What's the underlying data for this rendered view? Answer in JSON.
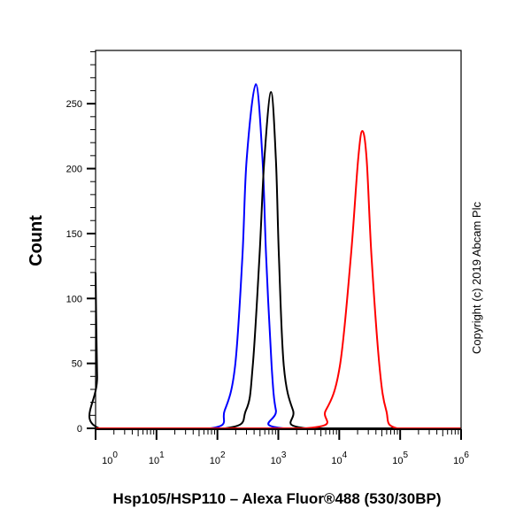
{
  "chart_data": {
    "type": "line",
    "title": "",
    "xlabel": "Hsp105/HSP110 – Alexa Fluor®488 (530/30BP)",
    "ylabel": "Count",
    "x_scale": "log",
    "xlim": [
      1,
      1000000
    ],
    "ylim": [
      0,
      291
    ],
    "grid": false,
    "legend": "none",
    "x_ticks": [
      {
        "base": "10",
        "exp": "0"
      },
      {
        "base": "10",
        "exp": "1"
      },
      {
        "base": "10",
        "exp": "2"
      },
      {
        "base": "10",
        "exp": "3"
      },
      {
        "base": "10",
        "exp": "4"
      },
      {
        "base": "10",
        "exp": "5"
      },
      {
        "base": "10",
        "exp": "6"
      }
    ],
    "y_ticks": [
      "0",
      "50",
      "100",
      "150",
      "200",
      "250"
    ],
    "annotation": "Copyright (c) 2019 Abcam Plc",
    "series": [
      {
        "color": "#0000ff",
        "points": [
          [
            1,
            0
          ],
          [
            76,
            0
          ],
          [
            132,
            14
          ],
          [
            195,
            48
          ],
          [
            257,
            132
          ],
          [
            302,
            207
          ],
          [
            427,
            265
          ],
          [
            550,
            207
          ],
          [
            631,
            132
          ],
          [
            776,
            48
          ],
          [
            912,
            14
          ],
          [
            1230,
            0
          ],
          [
            1000000,
            0
          ]
        ]
      },
      {
        "color": "#000000",
        "points": [
          [
            1,
            120
          ],
          [
            1.06,
            40
          ],
          [
            1.15,
            0
          ],
          [
            132,
            0
          ],
          [
            295,
            14
          ],
          [
            380,
            48
          ],
          [
            490,
            132
          ],
          [
            589,
            207
          ],
          [
            759,
            259
          ],
          [
            912,
            207
          ],
          [
            1023,
            132
          ],
          [
            1230,
            48
          ],
          [
            1738,
            14
          ],
          [
            2884,
            0
          ],
          [
            1000000,
            0
          ]
        ]
      },
      {
        "color": "#ff0000",
        "points": [
          [
            1,
            0
          ],
          [
            2692,
            0
          ],
          [
            6026,
            14
          ],
          [
            10233,
            48
          ],
          [
            15488,
            132
          ],
          [
            20417,
            207
          ],
          [
            23988,
            229
          ],
          [
            28184,
            207
          ],
          [
            33884,
            132
          ],
          [
            45709,
            48
          ],
          [
            58884,
            14
          ],
          [
            89125,
            0
          ],
          [
            1000000,
            0
          ]
        ]
      }
    ]
  }
}
